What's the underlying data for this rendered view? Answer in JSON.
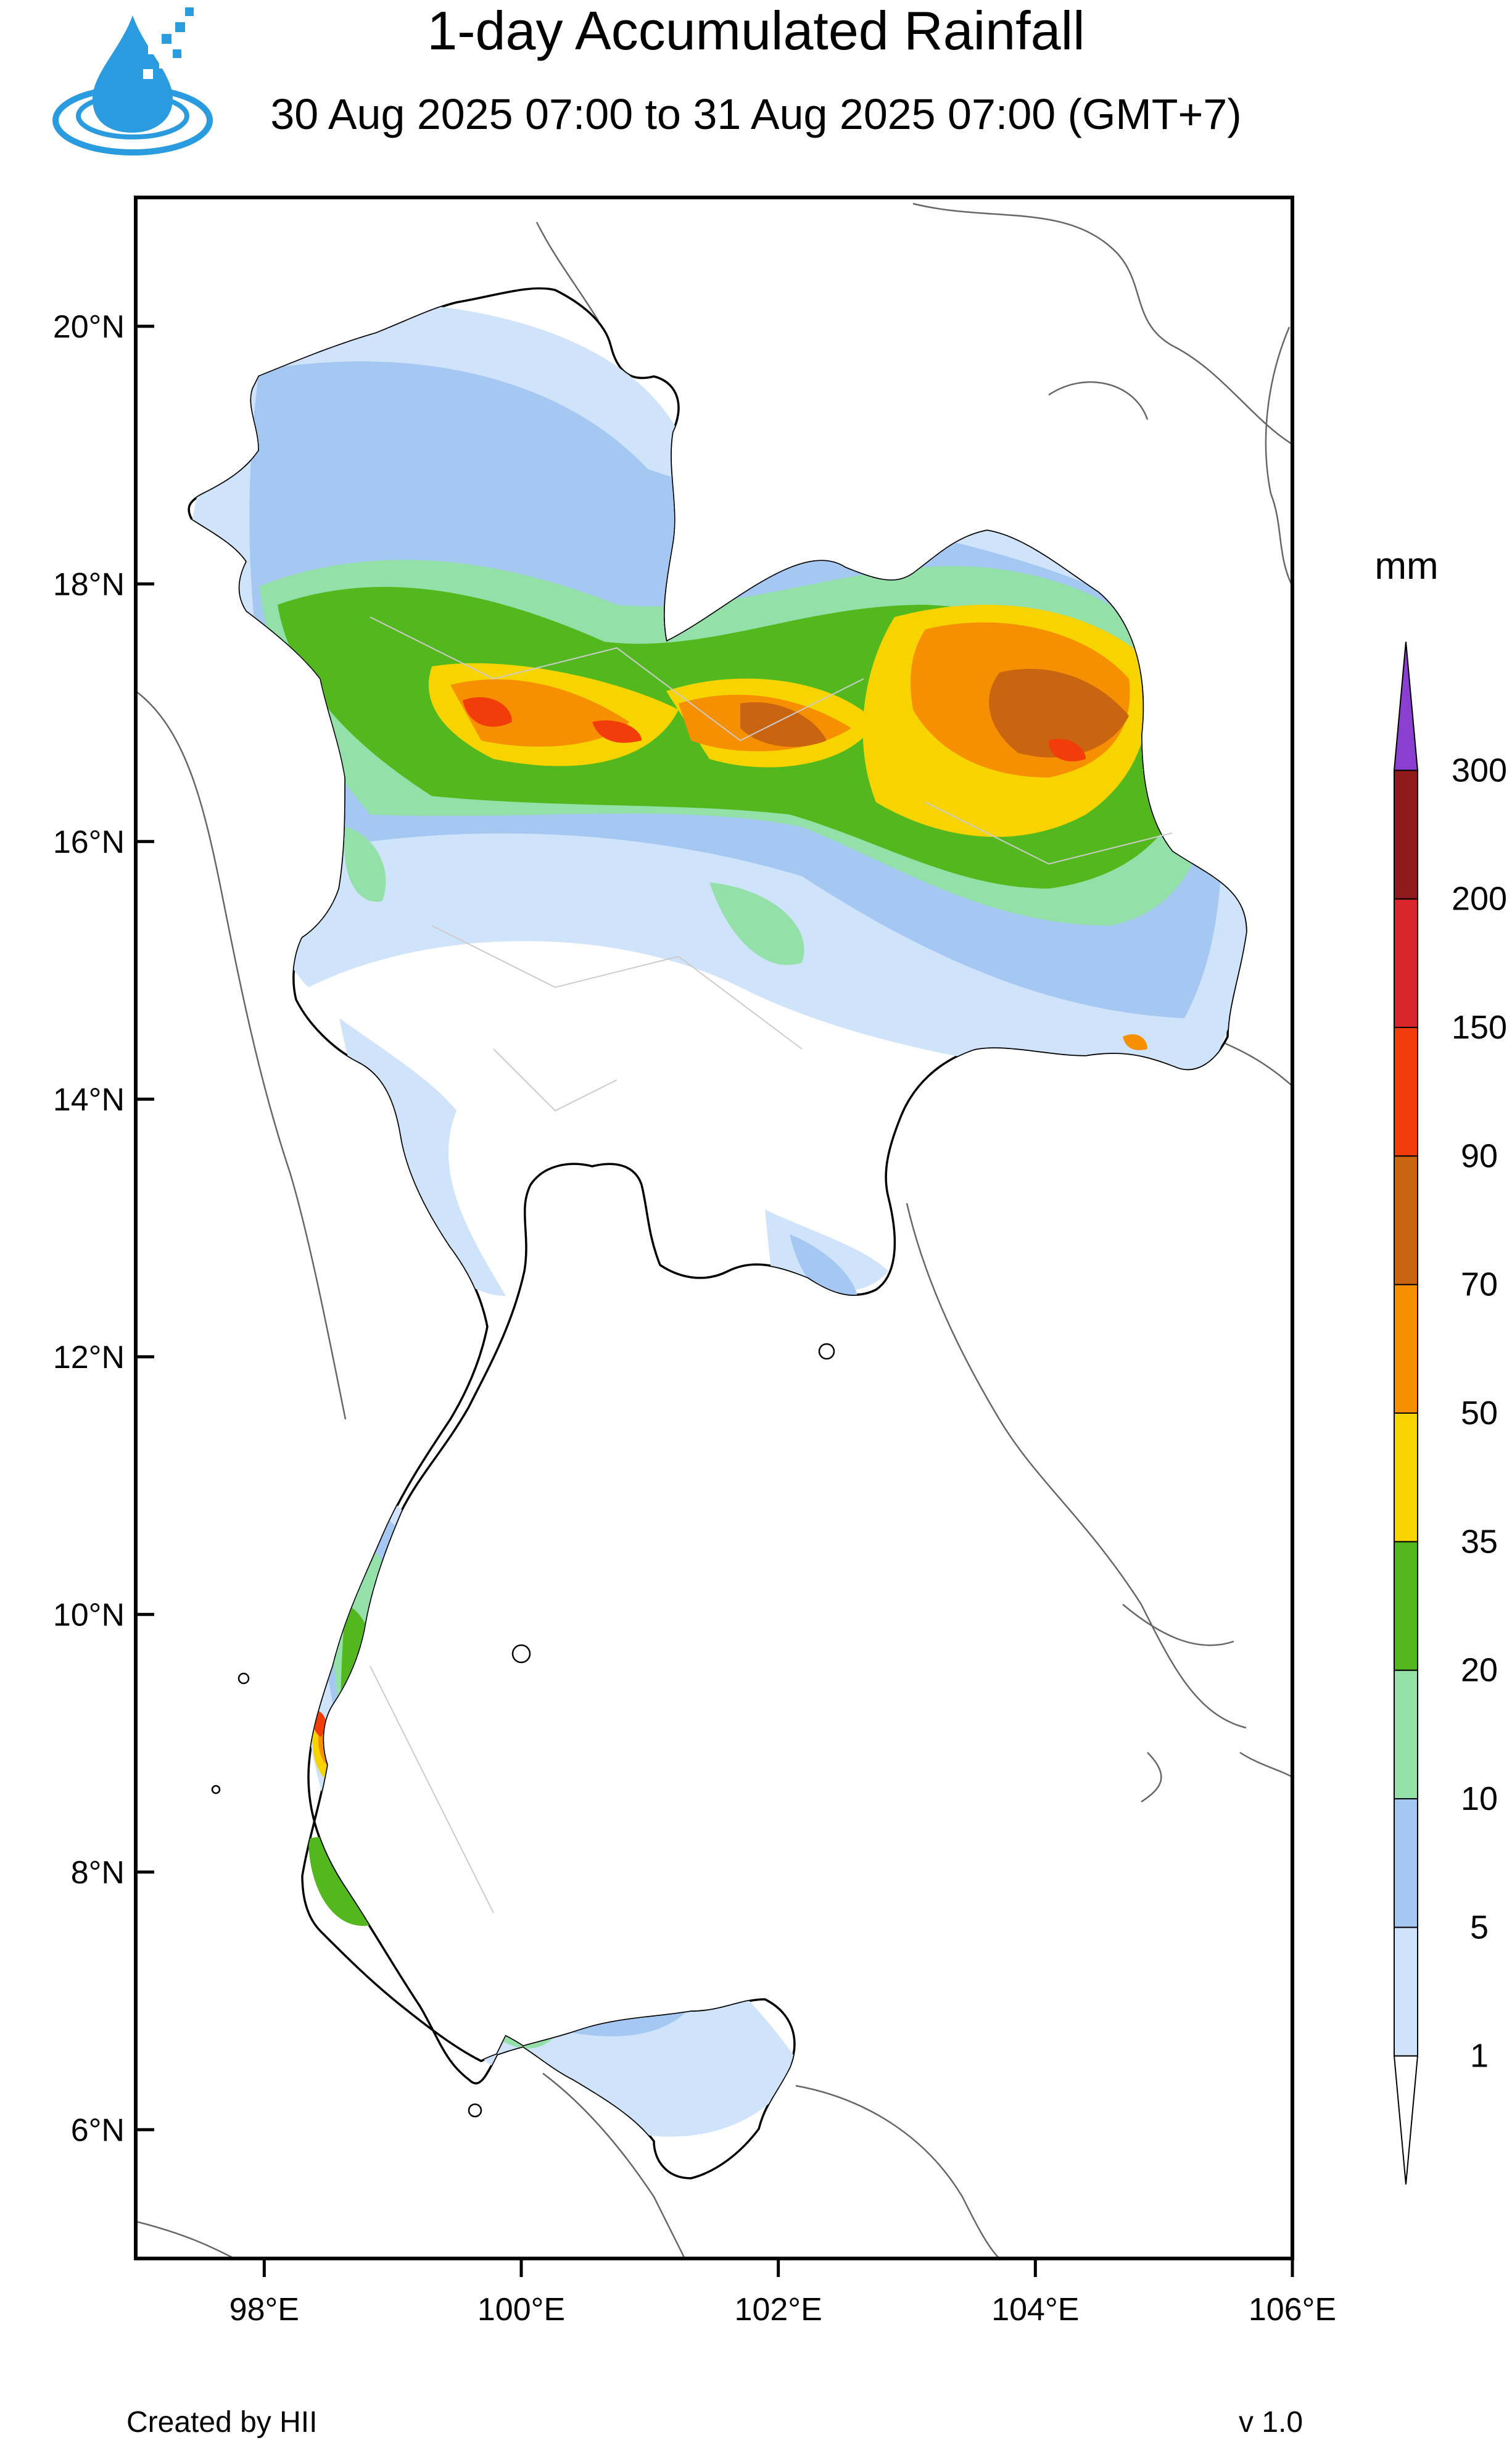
{
  "title": "1-day Accumulated Rainfall",
  "subtitle": "30 Aug 2025 07:00 to 31 Aug 2025 07:00 (GMT+7)",
  "footer": {
    "credit": "Created by HII",
    "version": "v 1.0"
  },
  "logo": {
    "icon": "water-drop-pixel-logo-icon",
    "color": "#2b9be0"
  },
  "map": {
    "lon_range": [
      97,
      106
    ],
    "lat_range": [
      5,
      21
    ],
    "lat_ticks": [
      {
        "value": 20,
        "label": "20°N"
      },
      {
        "value": 18,
        "label": "18°N"
      },
      {
        "value": 16,
        "label": "16°N"
      },
      {
        "value": 14,
        "label": "14°N"
      },
      {
        "value": 12,
        "label": "12°N"
      },
      {
        "value": 10,
        "label": "10°N"
      },
      {
        "value": 8,
        "label": "8°N"
      },
      {
        "value": 6,
        "label": "6°N"
      }
    ],
    "lon_ticks": [
      {
        "value": 98,
        "label": "98°E"
      },
      {
        "value": 100,
        "label": "100°E"
      },
      {
        "value": 102,
        "label": "102°E"
      },
      {
        "value": 104,
        "label": "104°E"
      },
      {
        "value": 106,
        "label": "106°E"
      }
    ]
  },
  "colorbar": {
    "unit": "mm",
    "levels": [
      "1",
      "5",
      "10",
      "20",
      "35",
      "50",
      "70",
      "90",
      "150",
      "200",
      "300"
    ],
    "colors": [
      "#ffffff",
      "#cfe3fb",
      "#a4c8f1",
      "#93e0a8",
      "#52b81e",
      "#f7d400",
      "#f79000",
      "#c96410",
      "#f23d0a",
      "#d8262c",
      "#8f1a1c",
      "#8b3fd0"
    ]
  }
}
